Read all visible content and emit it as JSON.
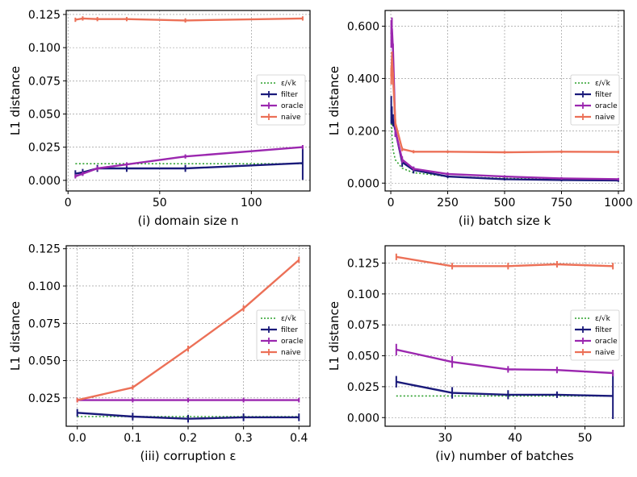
{
  "colors": {
    "eps": "#2ca02c",
    "filter": "#1a1a7a",
    "oracle": "#9b27af",
    "naive": "#ec7057"
  },
  "legend_labels": [
    "ε/√k",
    "filter",
    "oracle",
    "naive"
  ],
  "chart_data": [
    {
      "type": "line",
      "xlabel": "(i) domain size n",
      "ylabel": "L1 distance",
      "xlim": [
        -1,
        132
      ],
      "ylim": [
        -0.008,
        0.128
      ],
      "xticks": [
        0,
        50,
        100
      ],
      "yticks": [
        0.0,
        0.025,
        0.05,
        0.075,
        0.1,
        0.125
      ],
      "ytick_labels": [
        "0.000",
        "0.025",
        "0.050",
        "0.075",
        "0.100",
        "0.125"
      ],
      "legend_pos": "center-right",
      "series": [
        {
          "name": "ε/√k",
          "key": "eps",
          "style": "dotted",
          "x": [
            4,
            128
          ],
          "y": [
            0.0125,
            0.0125
          ],
          "err": [
            0,
            0
          ]
        },
        {
          "name": "filter",
          "key": "filter",
          "x": [
            4,
            8,
            16,
            32,
            64,
            128
          ],
          "y": [
            0.005,
            0.006,
            0.009,
            0.009,
            0.009,
            0.013
          ],
          "err": [
            0.002,
            0.002,
            0.002,
            0.002,
            0.002,
            0.012
          ]
        },
        {
          "name": "oracle",
          "key": "oracle",
          "x": [
            4,
            8,
            16,
            32,
            64,
            128
          ],
          "y": [
            0.003,
            0.005,
            0.009,
            0.012,
            0.018,
            0.025
          ],
          "err": [
            0.001,
            0.001,
            0.001,
            0.001,
            0.001,
            0.001
          ]
        },
        {
          "name": "naive",
          "key": "naive",
          "x": [
            4,
            8,
            16,
            32,
            64,
            128
          ],
          "y": [
            0.121,
            0.122,
            0.1215,
            0.1215,
            0.1205,
            0.122
          ],
          "err": [
            0.001,
            0.001,
            0.001,
            0.001,
            0.001,
            0.001
          ]
        }
      ]
    },
    {
      "type": "line",
      "xlabel": "(ii) batch size k",
      "ylabel": "L1 distance",
      "xlim": [
        -25,
        1025
      ],
      "ylim": [
        -0.03,
        0.66
      ],
      "xticks": [
        0,
        250,
        500,
        750,
        1000
      ],
      "yticks": [
        0,
        0.2,
        0.4,
        0.6
      ],
      "ytick_labels": [
        "0.000",
        "0.200",
        "0.400",
        "0.600"
      ],
      "legend_pos": "center-right",
      "series": [
        {
          "name": "ε/√k",
          "key": "eps",
          "style": "dotted",
          "x": [
            2,
            5,
            10,
            20,
            50,
            100,
            250,
            500,
            750,
            1000
          ],
          "y": [
            0.283,
            0.179,
            0.126,
            0.089,
            0.057,
            0.04,
            0.025,
            0.018,
            0.015,
            0.013
          ],
          "err": [
            0,
            0,
            0,
            0,
            0,
            0,
            0,
            0,
            0,
            0
          ]
        },
        {
          "name": "filter",
          "key": "filter",
          "x": [
            2,
            5,
            10,
            20,
            50,
            100,
            250,
            500,
            750,
            1000
          ],
          "y": [
            0.28,
            0.26,
            0.24,
            0.2,
            0.08,
            0.05,
            0.025,
            0.015,
            0.012,
            0.01
          ],
          "err": [
            0.05,
            0.03,
            0.02,
            0.02,
            0.015,
            0.01,
            0.003,
            0.002,
            0.002,
            0.002
          ]
        },
        {
          "name": "oracle",
          "key": "oracle",
          "x": [
            2,
            5,
            10,
            20,
            50,
            100,
            250,
            500,
            750,
            1000
          ],
          "y": [
            0.57,
            0.59,
            0.5,
            0.2,
            0.09,
            0.055,
            0.035,
            0.025,
            0.018,
            0.015
          ],
          "err": [
            0.05,
            0.04,
            0.03,
            0.02,
            0.01,
            0.005,
            0.003,
            0.002,
            0.002,
            0.002
          ]
        },
        {
          "name": "naive",
          "key": "naive",
          "x": [
            2,
            5,
            10,
            20,
            50,
            100,
            250,
            500,
            750,
            1000
          ],
          "y": [
            0.41,
            0.48,
            0.4,
            0.23,
            0.13,
            0.12,
            0.12,
            0.118,
            0.12,
            0.119
          ],
          "err": [
            0.03,
            0.02,
            0.02,
            0.01,
            0.005,
            0.003,
            0.002,
            0.002,
            0.002,
            0.002
          ]
        }
      ]
    },
    {
      "type": "line",
      "xlabel": "(iii) corruption ε",
      "ylabel": "L1 distance",
      "xlim": [
        -0.02,
        0.42
      ],
      "ylim": [
        0.006,
        0.127
      ],
      "xticks": [
        0.0,
        0.1,
        0.2,
        0.3,
        0.4
      ],
      "xtick_labels": [
        "0.0",
        "0.1",
        "0.2",
        "0.3",
        "0.4"
      ],
      "yticks": [
        0.025,
        0.05,
        0.075,
        0.1,
        0.125
      ],
      "ytick_labels": [
        "0.025",
        "0.050",
        "0.075",
        "0.100",
        "0.125"
      ],
      "legend_pos": "center-right",
      "series": [
        {
          "name": "ε/√k",
          "key": "eps",
          "style": "dotted",
          "x": [
            0.0,
            0.1,
            0.2,
            0.3,
            0.4
          ],
          "y": [
            0.0125,
            0.0125,
            0.0125,
            0.0125,
            0.0125
          ],
          "err": [
            0,
            0,
            0,
            0,
            0
          ]
        },
        {
          "name": "filter",
          "key": "filter",
          "x": [
            0.0,
            0.1,
            0.2,
            0.3,
            0.4
          ],
          "y": [
            0.015,
            0.0125,
            0.011,
            0.012,
            0.012
          ],
          "err": [
            0.002,
            0.002,
            0.002,
            0.002,
            0.002
          ]
        },
        {
          "name": "oracle",
          "key": "oracle",
          "x": [
            0.0,
            0.1,
            0.2,
            0.3,
            0.4
          ],
          "y": [
            0.0235,
            0.0235,
            0.0235,
            0.0235,
            0.0235
          ],
          "err": [
            0.001,
            0.001,
            0.001,
            0.001,
            0.001
          ]
        },
        {
          "name": "naive",
          "key": "naive",
          "x": [
            0.0,
            0.1,
            0.2,
            0.3,
            0.4
          ],
          "y": [
            0.0235,
            0.032,
            0.058,
            0.085,
            0.1175
          ],
          "err": [
            0.001,
            0.001,
            0.0015,
            0.0015,
            0.0015
          ]
        }
      ]
    },
    {
      "type": "line",
      "xlabel": "(iv) number of batches",
      "ylabel": "L1 distance",
      "xlim": [
        21.4,
        55.6
      ],
      "ylim": [
        -0.007,
        0.139
      ],
      "xticks": [
        30,
        40,
        50
      ],
      "yticks": [
        0.0,
        0.025,
        0.05,
        0.075,
        0.1,
        0.125
      ],
      "ytick_labels": [
        "0.000",
        "0.025",
        "0.050",
        "0.075",
        "0.100",
        "0.125"
      ],
      "legend_pos": "center-right",
      "series": [
        {
          "name": "ε/√k",
          "key": "eps",
          "style": "dotted",
          "x": [
            23,
            54
          ],
          "y": [
            0.0175,
            0.0175
          ],
          "err": [
            0,
            0
          ]
        },
        {
          "name": "filter",
          "key": "filter",
          "x": [
            23,
            31,
            39,
            46,
            54
          ],
          "y": [
            0.029,
            0.02,
            0.0185,
            0.0185,
            0.0175
          ],
          "err": [
            0.004,
            0.004,
            0.003,
            0.002,
            0.018
          ]
        },
        {
          "name": "oracle",
          "key": "oracle",
          "x": [
            23,
            31,
            39,
            46,
            54
          ],
          "y": [
            0.055,
            0.045,
            0.039,
            0.0385,
            0.036
          ],
          "err": [
            0.004,
            0.004,
            0.002,
            0.002,
            0.002
          ]
        },
        {
          "name": "naive",
          "key": "naive",
          "x": [
            23,
            31,
            39,
            46,
            54
          ],
          "y": [
            0.13,
            0.1225,
            0.1225,
            0.124,
            0.1225
          ],
          "err": [
            0.002,
            0.002,
            0.002,
            0.002,
            0.002
          ]
        }
      ]
    }
  ]
}
